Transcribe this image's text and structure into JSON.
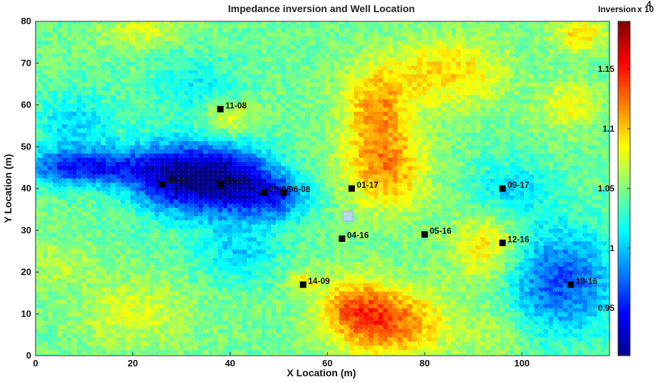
{
  "chart_data": {
    "type": "heatmap",
    "title": "Impedance inversion and Well Location",
    "xlabel": "X Location (m)",
    "ylabel": "Y Location (m)",
    "xlim": [
      0,
      118
    ],
    "ylim": [
      0,
      80
    ],
    "xticks": [
      "0",
      "20",
      "40",
      "60",
      "80",
      "100"
    ],
    "yticks": [
      "0",
      "10",
      "20",
      "30",
      "40",
      "50",
      "60",
      "70",
      "80"
    ],
    "colorbar": {
      "label": "Inversion",
      "multiplier": "x 10",
      "exponent": "4",
      "range": [
        0.91,
        1.19
      ],
      "ticks": [
        "0.95",
        "1",
        "1.05",
        "1.1",
        "1.15"
      ],
      "tick_values": [
        0.95,
        1.0,
        1.05,
        1.1,
        1.15
      ],
      "colormap": "jet"
    },
    "wells": [
      {
        "name": "11-08",
        "x": 38,
        "y": 59
      },
      {
        "name": "08-08",
        "x": 26,
        "y": 41
      },
      {
        "name": "09-08",
        "x": 38,
        "y": 41
      },
      {
        "name": "29-06",
        "x": 47,
        "y": 39
      },
      {
        "name": "06-08",
        "x": 51,
        "y": 39
      },
      {
        "name": "01-17",
        "x": 65,
        "y": 40
      },
      {
        "name": "09-17",
        "x": 96,
        "y": 40
      },
      {
        "name": "04-16",
        "x": 63,
        "y": 28
      },
      {
        "name": "05-16",
        "x": 80,
        "y": 29
      },
      {
        "name": "12-16",
        "x": 96,
        "y": 27
      },
      {
        "name": "14-09",
        "x": 55,
        "y": 17
      },
      {
        "name": "13-16",
        "x": 110,
        "y": 17
      }
    ],
    "field_features": [
      {
        "x": 10,
        "y": 45,
        "sx": 9,
        "sy": 3,
        "v": -0.09
      },
      {
        "x": 28,
        "y": 43,
        "sx": 7,
        "sy": 6,
        "v": -0.1
      },
      {
        "x": 40,
        "y": 42,
        "sx": 7,
        "sy": 6,
        "v": -0.11
      },
      {
        "x": 50,
        "y": 38,
        "sx": 5,
        "sy": 4,
        "v": -0.06
      },
      {
        "x": 42,
        "y": 25,
        "sx": 6,
        "sy": 5,
        "v": -0.04
      },
      {
        "x": 8,
        "y": 55,
        "sx": 6,
        "sy": 6,
        "v": -0.04
      },
      {
        "x": 108,
        "y": 18,
        "sx": 8,
        "sy": 9,
        "v": -0.08
      },
      {
        "x": 98,
        "y": 40,
        "sx": 6,
        "sy": 5,
        "v": -0.04
      },
      {
        "x": 33,
        "y": 65,
        "sx": 7,
        "sy": 5,
        "v": -0.03
      },
      {
        "x": 70,
        "y": 60,
        "sx": 5,
        "sy": 7,
        "v": 0.06
      },
      {
        "x": 72,
        "y": 45,
        "sx": 6,
        "sy": 7,
        "v": 0.07
      },
      {
        "x": 85,
        "y": 68,
        "sx": 8,
        "sy": 6,
        "v": 0.05
      },
      {
        "x": 73,
        "y": 8,
        "sx": 8,
        "sy": 6,
        "v": 0.08
      },
      {
        "x": 65,
        "y": 12,
        "sx": 5,
        "sy": 5,
        "v": 0.05
      },
      {
        "x": 93,
        "y": 26,
        "sx": 5,
        "sy": 6,
        "v": 0.05
      },
      {
        "x": 40,
        "y": 57,
        "sx": 4,
        "sy": 3,
        "v": 0.04
      },
      {
        "x": 20,
        "y": 10,
        "sx": 8,
        "sy": 6,
        "v": 0.03
      },
      {
        "x": 5,
        "y": 22,
        "sx": 5,
        "sy": 4,
        "v": 0.02
      },
      {
        "x": 110,
        "y": 60,
        "sx": 4,
        "sy": 4,
        "v": 0.04
      },
      {
        "x": 112,
        "y": 77,
        "sx": 4,
        "sy": 3,
        "v": 0.05
      },
      {
        "x": 22,
        "y": 78,
        "sx": 6,
        "sy": 3,
        "v": 0.03
      },
      {
        "x": 95,
        "y": 5,
        "sx": 5,
        "sy": 5,
        "v": 0.02
      },
      {
        "x": 55,
        "y": 18,
        "sx": 2,
        "sy": 2,
        "v": 0.04
      }
    ]
  }
}
